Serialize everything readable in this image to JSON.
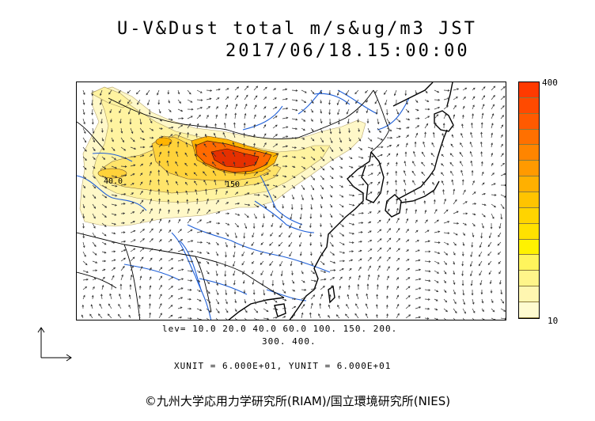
{
  "title": {
    "line1": "U-V&Dust total m/s&ug/m3 JST",
    "line2": "2017/06/18.15:00:00"
  },
  "colorbar": {
    "max_label": "400",
    "min_label": "10",
    "colors": [
      "#fffbd0",
      "#fff6b0",
      "#fff58a",
      "#fff45c",
      "#fff200",
      "#ffe100",
      "#ffd400",
      "#ffc400",
      "#ffb000",
      "#ff9a00",
      "#ff8500",
      "#ff7000",
      "#ff5a00",
      "#ff4a00",
      "#ff3a00"
    ]
  },
  "levels": {
    "line1": "lev= 10.0 20.0 40.0 60.0 100. 150. 200.",
    "line2": "300. 400."
  },
  "units": "XUNIT = 6.000E+01, YUNIT = 6.000E+01",
  "contour_labels": [
    "40.0",
    "150"
  ],
  "copyright": "©九州大学応用力学研究所(RIAM)/国立環境研究所(NIES)",
  "colors": {
    "coast": "#000000",
    "rivers": "#1e5fd8",
    "dust_low": "#fff7b8",
    "dust_mid": "#ffd23a",
    "dust_high": "#ff5a00",
    "dust_peak": "#e53000"
  }
}
